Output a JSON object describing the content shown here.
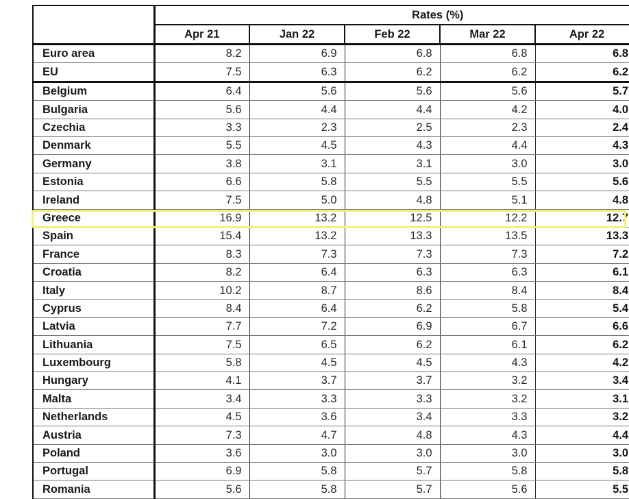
{
  "table": {
    "group_header": "Rates (%)",
    "corner_label": "",
    "columns": [
      "Apr 21",
      "Jan 22",
      "Feb 22",
      "Mar 22",
      "Apr 22"
    ],
    "highlighted_row": "Greece",
    "highlight_color": "#f4ef7a",
    "rows": [
      {
        "country": "Euro area",
        "values": [
          "8.2",
          "6.9",
          "6.8",
          "6.8",
          "6.8"
        ]
      },
      {
        "country": "EU",
        "values": [
          "7.5",
          "6.3",
          "6.2",
          "6.2",
          "6.2"
        ]
      },
      {
        "country": "Belgium",
        "values": [
          "6.4",
          "5.6",
          "5.6",
          "5.6",
          "5.7"
        ]
      },
      {
        "country": "Bulgaria",
        "values": [
          "5.6",
          "4.4",
          "4.4",
          "4.2",
          "4.0"
        ]
      },
      {
        "country": "Czechia",
        "values": [
          "3.3",
          "2.3",
          "2.5",
          "2.3",
          "2.4"
        ]
      },
      {
        "country": "Denmark",
        "values": [
          "5.5",
          "4.5",
          "4.3",
          "4.4",
          "4.3"
        ]
      },
      {
        "country": "Germany",
        "values": [
          "3.8",
          "3.1",
          "3.1",
          "3.0",
          "3.0"
        ]
      },
      {
        "country": "Estonia",
        "values": [
          "6.6",
          "5.8",
          "5.5",
          "5.5",
          "5.6"
        ]
      },
      {
        "country": "Ireland",
        "values": [
          "7.5",
          "5.0",
          "4.8",
          "5.1",
          "4.8"
        ]
      },
      {
        "country": "Greece",
        "values": [
          "16.9",
          "13.2",
          "12.5",
          "12.2",
          "12.7"
        ]
      },
      {
        "country": "Spain",
        "values": [
          "15.4",
          "13.2",
          "13.3",
          "13.5",
          "13.3"
        ]
      },
      {
        "country": "France",
        "values": [
          "8.3",
          "7.3",
          "7.3",
          "7.3",
          "7.2"
        ]
      },
      {
        "country": "Croatia",
        "values": [
          "8.2",
          "6.4",
          "6.3",
          "6.3",
          "6.1"
        ]
      },
      {
        "country": "Italy",
        "values": [
          "10.2",
          "8.7",
          "8.6",
          "8.4",
          "8.4"
        ]
      },
      {
        "country": "Cyprus",
        "values": [
          "8.4",
          "6.4",
          "6.2",
          "5.8",
          "5.4"
        ]
      },
      {
        "country": "Latvia",
        "values": [
          "7.7",
          "7.2",
          "6.9",
          "6.7",
          "6.6"
        ]
      },
      {
        "country": "Lithuania",
        "values": [
          "7.5",
          "6.5",
          "6.2",
          "6.1",
          "6.2"
        ]
      },
      {
        "country": "Luxembourg",
        "values": [
          "5.8",
          "4.5",
          "4.5",
          "4.3",
          "4.2"
        ]
      },
      {
        "country": "Hungary",
        "values": [
          "4.1",
          "3.7",
          "3.7",
          "3.2",
          "3.4"
        ]
      },
      {
        "country": "Malta",
        "values": [
          "3.4",
          "3.3",
          "3.3",
          "3.2",
          "3.1"
        ]
      },
      {
        "country": "Netherlands",
        "values": [
          "4.5",
          "3.6",
          "3.4",
          "3.3",
          "3.2"
        ]
      },
      {
        "country": "Austria",
        "values": [
          "7.3",
          "4.7",
          "4.8",
          "4.3",
          "4.4"
        ]
      },
      {
        "country": "Poland",
        "values": [
          "3.6",
          "3.0",
          "3.0",
          "3.0",
          "3.0"
        ]
      },
      {
        "country": "Portugal",
        "values": [
          "6.9",
          "5.8",
          "5.7",
          "5.8",
          "5.8"
        ]
      },
      {
        "country": "Romania",
        "values": [
          "5.6",
          "5.8",
          "5.7",
          "5.6",
          "5.5"
        ]
      }
    ]
  }
}
